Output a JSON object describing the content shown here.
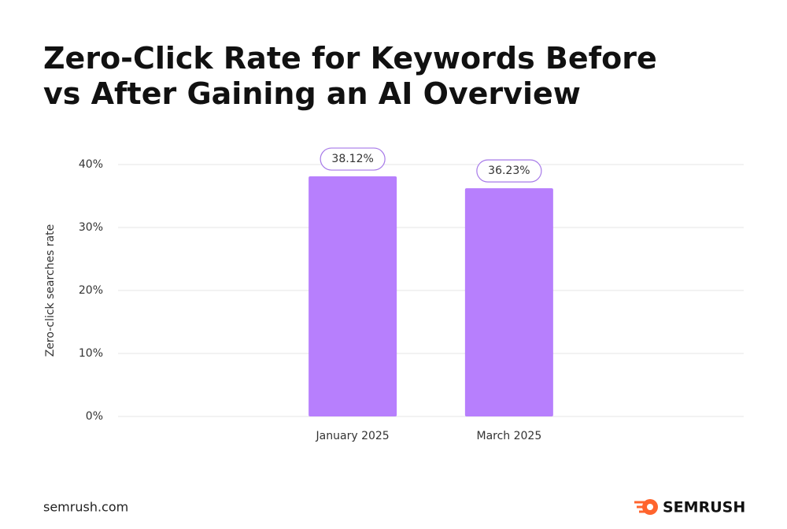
{
  "chart_data": {
    "type": "bar",
    "title": [
      "Zero-Click Rate for Keywords Before",
      "vs After Gaining an AI Overview"
    ],
    "y_label": "Zero-click searches rate",
    "categories": [
      "January 2025",
      "March 2025"
    ],
    "values": [
      38.12,
      36.23
    ],
    "value_labels": [
      "38.12%",
      "36.23%"
    ],
    "color": "#b77ffd",
    "ylim": [
      0,
      40
    ],
    "yticks": [
      {
        "value": 0,
        "label": "0%"
      },
      {
        "value": 10,
        "label": "10%"
      },
      {
        "value": 20,
        "label": "20%"
      },
      {
        "value": 30,
        "label": "30%"
      },
      {
        "value": 40,
        "label": "40%"
      }
    ],
    "grid": true,
    "source": "semrush.com",
    "brand": "SEMRUSH"
  }
}
